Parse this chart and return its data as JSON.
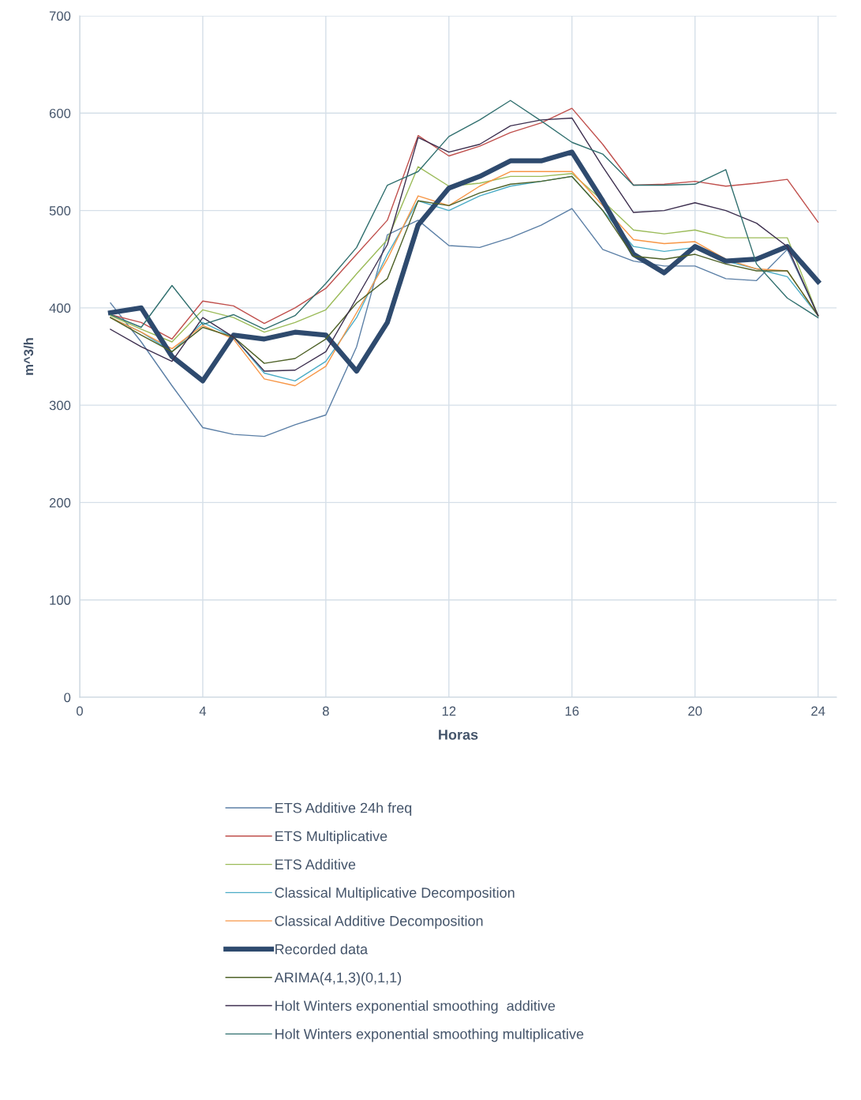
{
  "chart_data": {
    "type": "line",
    "xlabel": "Horas",
    "ylabel": "m^3/h",
    "x": [
      1,
      2,
      3,
      4,
      5,
      6,
      7,
      8,
      9,
      10,
      11,
      12,
      13,
      14,
      15,
      16,
      17,
      18,
      19,
      20,
      21,
      22,
      23,
      24
    ],
    "xlim": [
      0,
      24.6
    ],
    "xticks": [
      0,
      4,
      8,
      12,
      16,
      20,
      24
    ],
    "ylim": [
      0,
      700
    ],
    "yticks": [
      0,
      100,
      200,
      300,
      400,
      500,
      600,
      700
    ],
    "grid": true,
    "legend": "bottom",
    "marker": "none",
    "line_style": "solid",
    "series": [
      {
        "name": "ETS Additive 24h freq",
        "color": "#5b7fa6",
        "values": [
          405,
          365,
          320,
          277,
          270,
          268,
          280,
          290,
          360,
          475,
          490,
          464,
          462,
          472,
          485,
          502,
          460,
          448,
          443,
          443,
          430,
          428,
          460,
          392
        ]
      },
      {
        "name": "ETS Multiplicative",
        "color": "#c0504d",
        "values": [
          393,
          385,
          368,
          407,
          402,
          384,
          400,
          420,
          455,
          490,
          577,
          556,
          566,
          580,
          590,
          605,
          568,
          526,
          527,
          530,
          525,
          528,
          532,
          488
        ]
      },
      {
        "name": "ETS Additive",
        "color": "#9bbb59",
        "values": [
          392,
          378,
          365,
          398,
          390,
          375,
          385,
          398,
          435,
          470,
          545,
          525,
          528,
          535,
          535,
          538,
          510,
          480,
          476,
          480,
          472,
          472,
          472,
          392
        ]
      },
      {
        "name": "Classical Multiplicative Decomposition",
        "color": "#4bacc6",
        "values": [
          390,
          375,
          355,
          385,
          370,
          333,
          325,
          345,
          390,
          455,
          510,
          500,
          515,
          525,
          530,
          535,
          500,
          463,
          458,
          462,
          448,
          440,
          432,
          392
        ]
      },
      {
        "name": "Classical Additive Decomposition",
        "color": "#f79646",
        "values": [
          390,
          375,
          358,
          382,
          368,
          327,
          320,
          340,
          395,
          450,
          515,
          505,
          525,
          540,
          540,
          540,
          505,
          470,
          466,
          468,
          450,
          440,
          438,
          392
        ]
      },
      {
        "name": "Recorded data",
        "color": "#2e4a6e",
        "values": [
          395,
          400,
          350,
          325,
          372,
          368,
          375,
          372,
          335,
          385,
          485,
          523,
          535,
          551,
          551,
          560,
          510,
          455,
          436,
          463,
          448,
          450,
          463,
          427
        ]
      },
      {
        "name": "ARIMA(4,1,3)(0,1,1)",
        "color": "#4f6228",
        "values": [
          390,
          372,
          355,
          380,
          370,
          343,
          348,
          368,
          405,
          430,
          510,
          505,
          518,
          527,
          530,
          535,
          500,
          453,
          450,
          455,
          445,
          438,
          438,
          392
        ]
      },
      {
        "name": "Holt Winters exponential smoothing  additive",
        "color": "#3d2f4f",
        "values": [
          378,
          360,
          345,
          390,
          370,
          335,
          336,
          355,
          410,
          465,
          575,
          560,
          568,
          587,
          593,
          595,
          545,
          498,
          500,
          508,
          500,
          487,
          463,
          392
        ]
      },
      {
        "name": "Holt Winters exponential smoothing multiplicative",
        "color": "#31706f",
        "values": [
          393,
          380,
          423,
          383,
          393,
          378,
          392,
          425,
          462,
          526,
          540,
          576,
          593,
          613,
          592,
          570,
          558,
          526,
          526,
          527,
          542,
          445,
          410,
          390
        ]
      }
    ]
  }
}
